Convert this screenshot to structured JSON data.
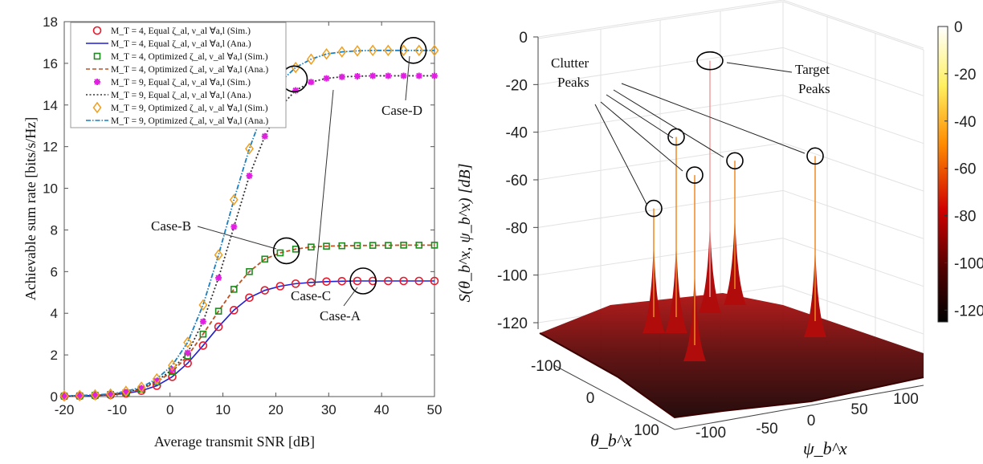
{
  "chart_data": [
    {
      "type": "line",
      "title": "",
      "xlabel": "Average transmit SNR [dB]",
      "ylabel": "Achievable sum rate [bits/s/Hz]",
      "xlim": [
        -20,
        50
      ],
      "ylim": [
        0,
        18
      ],
      "xticks": [
        "-20",
        "-10",
        "0",
        "10",
        "20",
        "30",
        "40",
        "50"
      ],
      "yticks": [
        "0",
        "2",
        "4",
        "6",
        "8",
        "10",
        "12",
        "14",
        "16",
        "18"
      ],
      "grid": false,
      "legend_position": "top-left",
      "x": [
        -20,
        -17.08,
        -14.17,
        -11.25,
        -8.33,
        -5.42,
        -2.5,
        0.42,
        3.33,
        6.25,
        9.17,
        12.08,
        15,
        17.92,
        20.83,
        23.75,
        26.67,
        29.58,
        32.5,
        35.42,
        38.33,
        41.25,
        44.17,
        47.08,
        50
      ],
      "series": [
        {
          "name": "M_T = 4, Equal ζ_al, ν_al ∀a,l (Sim.)",
          "style": "marker-circle",
          "color": "#e8192c",
          "values": [
            0.02,
            0.03,
            0.05,
            0.08,
            0.15,
            0.28,
            0.52,
            0.95,
            1.6,
            2.45,
            3.35,
            4.15,
            4.75,
            5.1,
            5.3,
            5.42,
            5.48,
            5.52,
            5.54,
            5.55,
            5.55,
            5.55,
            5.55,
            5.55,
            5.55
          ]
        },
        {
          "name": "M_T = 4, Equal ζ_al, ν_al ∀a,l (Ana.)",
          "style": "solid",
          "color": "#1f1fd6",
          "values": [
            0.02,
            0.03,
            0.05,
            0.08,
            0.15,
            0.28,
            0.52,
            0.95,
            1.6,
            2.45,
            3.35,
            4.15,
            4.75,
            5.1,
            5.3,
            5.42,
            5.48,
            5.52,
            5.54,
            5.55,
            5.55,
            5.55,
            5.55,
            5.55,
            5.55
          ]
        },
        {
          "name": "M_T = 4, Optimized ζ_al, ν_al ∀a,l (Sim.)",
          "style": "marker-square",
          "color": "#1e8c1e",
          "values": [
            0.02,
            0.03,
            0.06,
            0.1,
            0.18,
            0.35,
            0.7,
            1.2,
            1.95,
            3.0,
            4.1,
            5.15,
            6.0,
            6.6,
            6.9,
            7.08,
            7.18,
            7.22,
            7.24,
            7.25,
            7.26,
            7.26,
            7.27,
            7.27,
            7.27
          ]
        },
        {
          "name": "M_T = 4, Optimized ζ_al, ν_al ∀a,l (Ana.)",
          "style": "dashed",
          "color": "#c0501f",
          "values": [
            0.02,
            0.03,
            0.06,
            0.1,
            0.18,
            0.35,
            0.7,
            1.2,
            1.95,
            3.0,
            4.1,
            5.15,
            6.0,
            6.6,
            6.9,
            7.08,
            7.18,
            7.22,
            7.24,
            7.25,
            7.26,
            7.26,
            7.27,
            7.27,
            7.27
          ]
        },
        {
          "name": "M_T = 9, Equal ζ_al, ν_al ∀a,l (Sim.)",
          "style": "marker-star",
          "color": "#e020e0",
          "values": [
            0.02,
            0.04,
            0.06,
            0.1,
            0.2,
            0.4,
            0.75,
            1.3,
            2.1,
            3.6,
            5.7,
            8.15,
            10.6,
            12.5,
            13.9,
            14.7,
            15.1,
            15.28,
            15.35,
            15.38,
            15.4,
            15.4,
            15.4,
            15.4,
            15.4
          ]
        },
        {
          "name": "M_T = 9, Equal ζ_al, ν_al ∀a,l (Ana.)",
          "style": "dotted",
          "color": "#333333",
          "values": [
            0.02,
            0.04,
            0.06,
            0.1,
            0.2,
            0.4,
            0.75,
            1.3,
            2.1,
            3.6,
            5.7,
            8.15,
            10.6,
            12.5,
            13.9,
            14.7,
            15.1,
            15.28,
            15.35,
            15.38,
            15.4,
            15.4,
            15.4,
            15.4,
            15.4
          ]
        },
        {
          "name": "M_T = 9, Optimized ζ_al, ν_al ∀a,l (Sim.)",
          "style": "marker-diamond",
          "color": "#f0a020",
          "values": [
            0.03,
            0.05,
            0.08,
            0.12,
            0.25,
            0.45,
            0.85,
            1.5,
            2.6,
            4.4,
            6.8,
            9.45,
            11.9,
            13.9,
            15.1,
            15.8,
            16.2,
            16.45,
            16.55,
            16.6,
            16.62,
            16.62,
            16.62,
            16.62,
            16.62
          ]
        },
        {
          "name": "M_T = 9, Optimized ζ_al, ν_al ∀a,l (Ana.)",
          "style": "dashdot",
          "color": "#1a7fc0",
          "values": [
            0.03,
            0.05,
            0.08,
            0.12,
            0.25,
            0.45,
            0.85,
            1.5,
            2.6,
            4.4,
            6.8,
            9.45,
            11.9,
            13.9,
            15.1,
            15.8,
            16.2,
            16.45,
            16.55,
            16.6,
            16.62,
            16.62,
            16.62,
            16.62,
            16.62
          ]
        }
      ],
      "annotations": [
        {
          "text": "Case-A",
          "x": 36.5,
          "y": 5.55
        },
        {
          "text": "Case-B",
          "x": 22,
          "y": 7.0
        },
        {
          "text": "Case-C",
          "x": 23.5,
          "y": 15.25
        },
        {
          "text": "Case-D",
          "x": 46,
          "y": 16.62
        }
      ]
    },
    {
      "type": "surface3d",
      "zlabel": "S(θ_b^x, ψ_b^x) [dB]",
      "xlabel": "ψ_b^x",
      "ylabel": "θ_b^x",
      "zticks": [
        "0",
        "-20",
        "-40",
        "-60",
        "-80",
        "-100",
        "-120"
      ],
      "xticks": [
        "-100",
        "-50",
        "0",
        "50",
        "100"
      ],
      "yticks": [
        "-100",
        "0",
        "100"
      ],
      "zlim": [
        -125,
        0
      ],
      "colorbar": {
        "ticks": [
          "0",
          "-20",
          "-40",
          "-60",
          "-80",
          "-100",
          "-120"
        ],
        "range": [
          -125,
          0
        ],
        "colormap": "hot"
      },
      "peaks": [
        {
          "kind": "clutter",
          "z": -72
        },
        {
          "kind": "clutter",
          "z": -42
        },
        {
          "kind": "clutter",
          "z": -58
        },
        {
          "kind": "clutter",
          "z": -52
        },
        {
          "kind": "clutter",
          "z": -50
        },
        {
          "kind": "target",
          "z": -10
        }
      ],
      "annotations": [
        {
          "text": "Clutter",
          "line2": "Peaks"
        },
        {
          "text": "Target",
          "line2": "Peaks"
        }
      ]
    }
  ]
}
